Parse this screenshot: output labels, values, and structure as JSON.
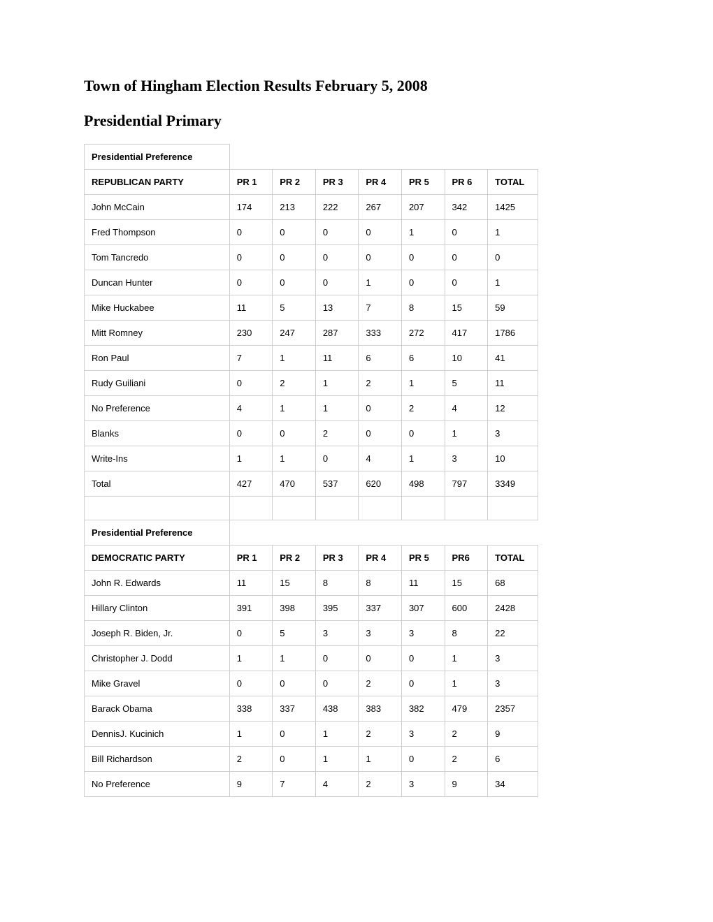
{
  "title": "Town of Hingham Election Results February 5, 2008",
  "subtitle": "Presidential Primary",
  "columns": [
    "PR 1",
    "PR 2",
    "PR 3",
    "PR 4",
    "PR 5",
    "PR 6",
    "TOTAL"
  ],
  "columns_dem": [
    "PR 1",
    "PR 2",
    "PR 3",
    "PR 4",
    "PR 5",
    "PR6",
    "TOTAL"
  ],
  "section1_label": "Presidential Preference",
  "party1_label": "REPUBLICAN PARTY",
  "section2_label": "Presidential Preference",
  "party2_label": "DEMOCRATIC PARTY",
  "rep": [
    {
      "name": "John McCain",
      "v": [
        "174",
        "213",
        "222",
        "267",
        "207",
        "342",
        "1425"
      ]
    },
    {
      "name": "Fred Thompson",
      "v": [
        "0",
        "0",
        "0",
        "0",
        "1",
        "0",
        "1"
      ]
    },
    {
      "name": "Tom Tancredo",
      "v": [
        "0",
        "0",
        "0",
        "0",
        "0",
        "0",
        "0"
      ]
    },
    {
      "name": "Duncan Hunter",
      "v": [
        "0",
        "0",
        "0",
        "1",
        "0",
        "0",
        "1"
      ]
    },
    {
      "name": "Mike Huckabee",
      "v": [
        "11",
        "5",
        "13",
        "7",
        "8",
        "15",
        "59"
      ]
    },
    {
      "name": "Mitt Romney",
      "v": [
        "230",
        "247",
        "287",
        "333",
        "272",
        "417",
        "1786"
      ]
    },
    {
      "name": "Ron Paul",
      "v": [
        "7",
        "1",
        "11",
        "6",
        "6",
        "10",
        "41"
      ]
    },
    {
      "name": "Rudy Guiliani",
      "v": [
        "0",
        "2",
        "1",
        "2",
        "1",
        "5",
        "11"
      ]
    },
    {
      "name": "No Preference",
      "v": [
        "4",
        "1",
        "1",
        "0",
        "2",
        "4",
        "12"
      ]
    },
    {
      "name": "Blanks",
      "v": [
        "0",
        "0",
        "2",
        "0",
        "0",
        "1",
        "3"
      ]
    },
    {
      "name": "Write-Ins",
      "v": [
        "1",
        "1",
        "0",
        "4",
        "1",
        "3",
        "10"
      ]
    },
    {
      "name": "Total",
      "v": [
        "427",
        "470",
        "537",
        "620",
        "498",
        "797",
        "3349"
      ]
    }
  ],
  "dem": [
    {
      "name": "John R. Edwards",
      "v": [
        "11",
        "15",
        "8",
        "8",
        "11",
        "15",
        "68"
      ]
    },
    {
      "name": "Hillary Clinton",
      "v": [
        "391",
        "398",
        "395",
        "337",
        "307",
        "600",
        "2428"
      ]
    },
    {
      "name": "Joseph R. Biden, Jr.",
      "v": [
        "0",
        "5",
        "3",
        "3",
        "3",
        "8",
        "22"
      ]
    },
    {
      "name": "Christopher J. Dodd",
      "v": [
        "1",
        "1",
        "0",
        "0",
        "0",
        "1",
        "3"
      ]
    },
    {
      "name": "Mike Gravel",
      "v": [
        "0",
        "0",
        "0",
        "2",
        "0",
        "1",
        "3"
      ]
    },
    {
      "name": "Barack Obama",
      "v": [
        "338",
        "337",
        "438",
        "383",
        "382",
        "479",
        "2357"
      ]
    },
    {
      "name": "DennisJ. Kucinich",
      "v": [
        "1",
        "0",
        "1",
        "2",
        "3",
        "2",
        "9"
      ]
    },
    {
      "name": "Bill Richardson",
      "v": [
        "2",
        "0",
        "1",
        "1",
        "0",
        "2",
        "6"
      ]
    },
    {
      "name": "No Preference",
      "v": [
        "9",
        "7",
        "4",
        "2",
        "3",
        "9",
        "34"
      ]
    }
  ],
  "colors": {
    "border": "#cfcfcf",
    "text": "#000000",
    "background": "#ffffff"
  },
  "fonts": {
    "heading_family": "Georgia",
    "heading_size_pt": 16,
    "body_family": "Verdana",
    "body_size_pt": 10
  }
}
